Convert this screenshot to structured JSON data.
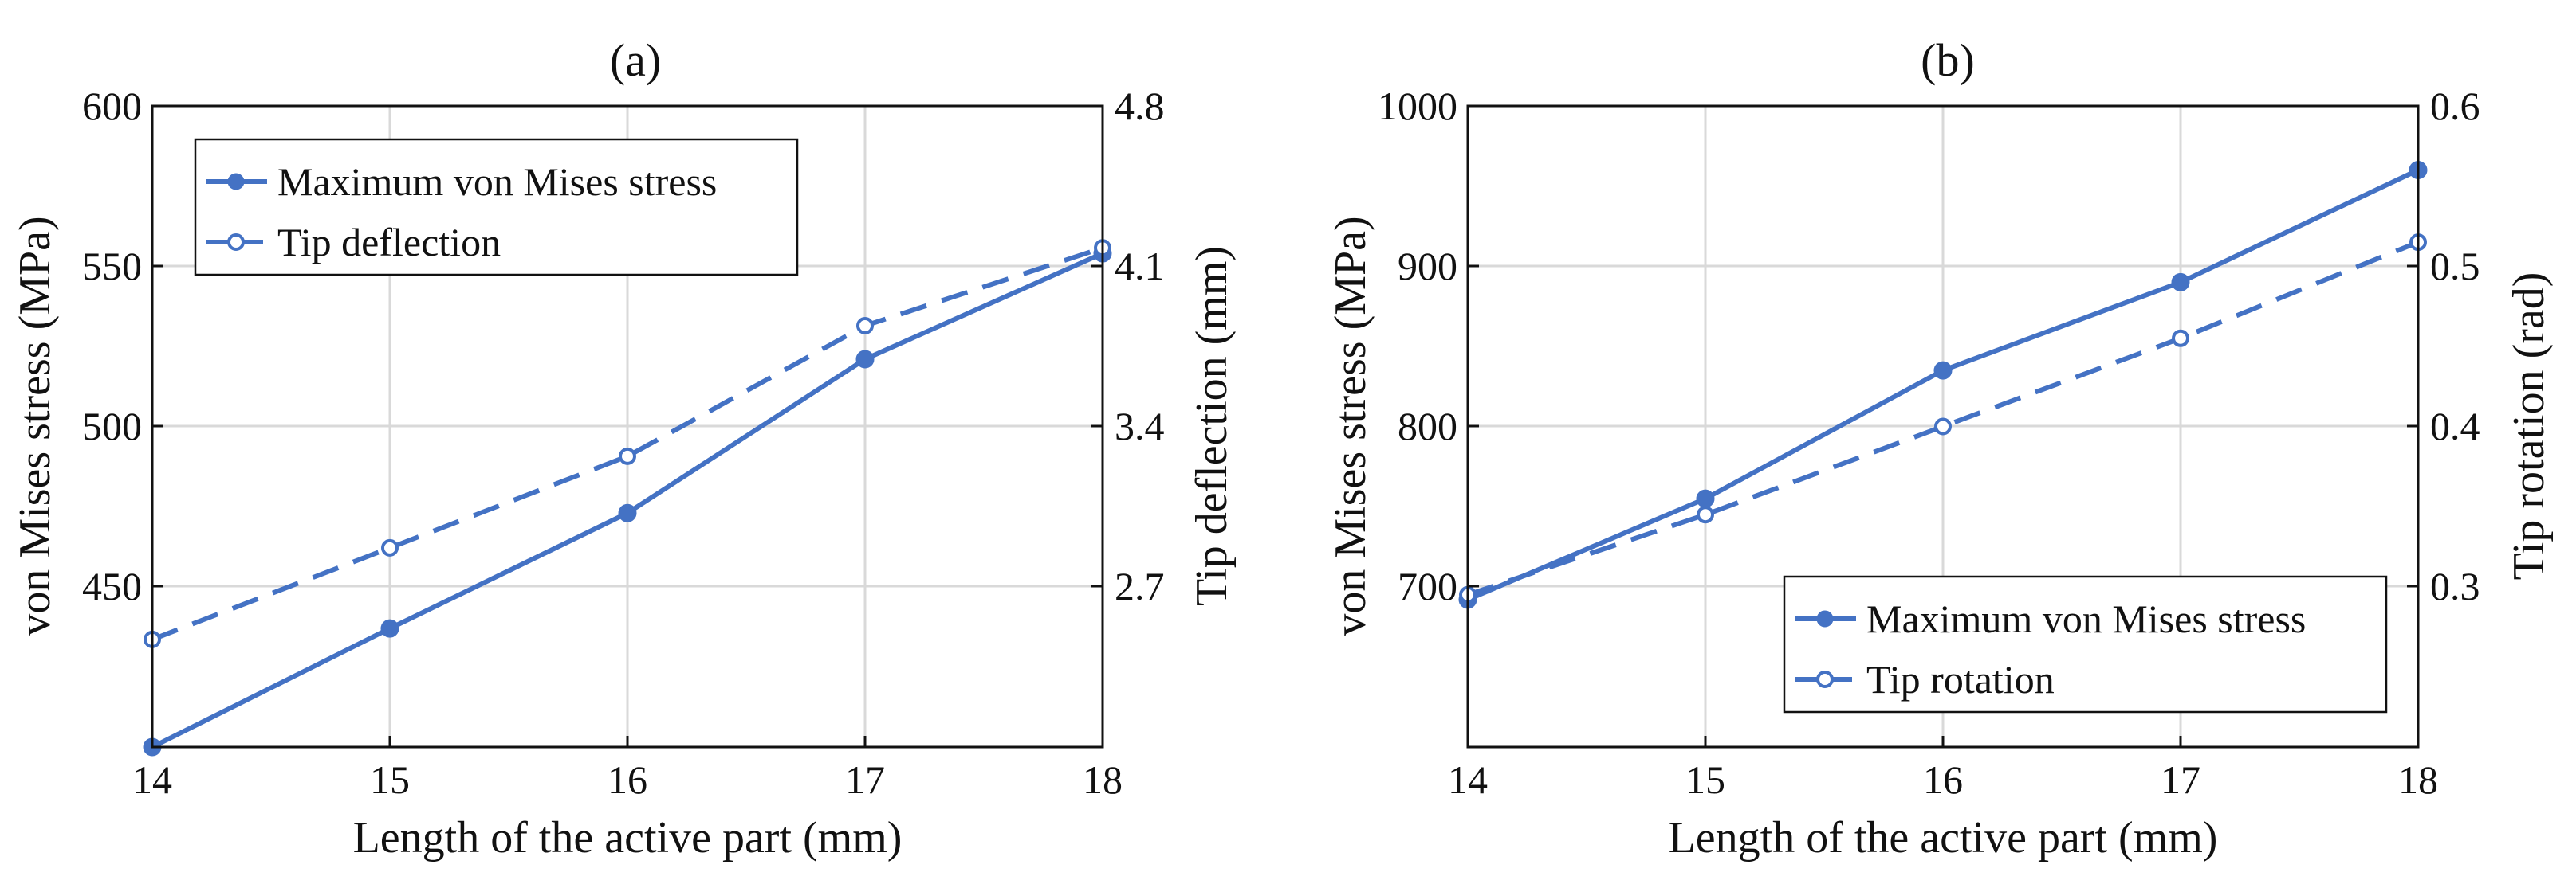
{
  "colors": {
    "series": "#4472C4",
    "grid": "#d9d9d9",
    "axis": "#111111"
  },
  "chart_data": [
    {
      "id": "a",
      "type": "line",
      "title": "(a)",
      "xlabel": "Length of the active part (mm)",
      "ylabel_left": "von Mises stress (MPa)",
      "ylabel_right": "Tip deflection (mm)",
      "x": [
        14,
        15,
        16,
        17,
        18
      ],
      "xlim": [
        14,
        18
      ],
      "xticks": [
        "14",
        "15",
        "16",
        "17",
        "18"
      ],
      "ylim_left": [
        400,
        600
      ],
      "yticks_left": [
        "600",
        "550",
        "500",
        "450"
      ],
      "ylim_right": [
        2.0,
        4.8
      ],
      "yticks_right": [
        "4.8",
        "4.1",
        "3.4",
        "2.7"
      ],
      "grid": true,
      "legend_position": "top-left",
      "series": [
        {
          "name": "Maximum von Mises stress",
          "axis": "left",
          "style": "solid-filled",
          "values": [
            400,
            437,
            473,
            521,
            554
          ]
        },
        {
          "name": "Tip deflection",
          "axis": "right",
          "style": "dashed-open",
          "values": [
            2.47,
            2.87,
            3.27,
            3.84,
            4.18
          ]
        }
      ]
    },
    {
      "id": "b",
      "type": "line",
      "title": "(b)",
      "xlabel": "Length of the active part (mm)",
      "ylabel_left": "von Mises stress (MPa)",
      "ylabel_right": "Tip rotation (rad)",
      "x": [
        14,
        15,
        16,
        17,
        18
      ],
      "xlim": [
        14,
        18
      ],
      "xticks": [
        "14",
        "15",
        "16",
        "17",
        "18"
      ],
      "ylim_left": [
        600,
        1000
      ],
      "yticks_left": [
        "1000",
        "900",
        "800",
        "700"
      ],
      "ylim_right": [
        0.2,
        0.6
      ],
      "yticks_right": [
        "0.6",
        "0.5",
        "0.4",
        "0.3"
      ],
      "grid": true,
      "legend_position": "bottom-right",
      "series": [
        {
          "name": "Maximum von Mises stress",
          "axis": "left",
          "style": "solid-filled",
          "values": [
            692,
            755,
            835,
            890,
            960
          ]
        },
        {
          "name": "Tip rotation",
          "axis": "right",
          "style": "dashed-open",
          "values": [
            0.295,
            0.345,
            0.4,
            0.455,
            0.515
          ]
        }
      ]
    }
  ]
}
